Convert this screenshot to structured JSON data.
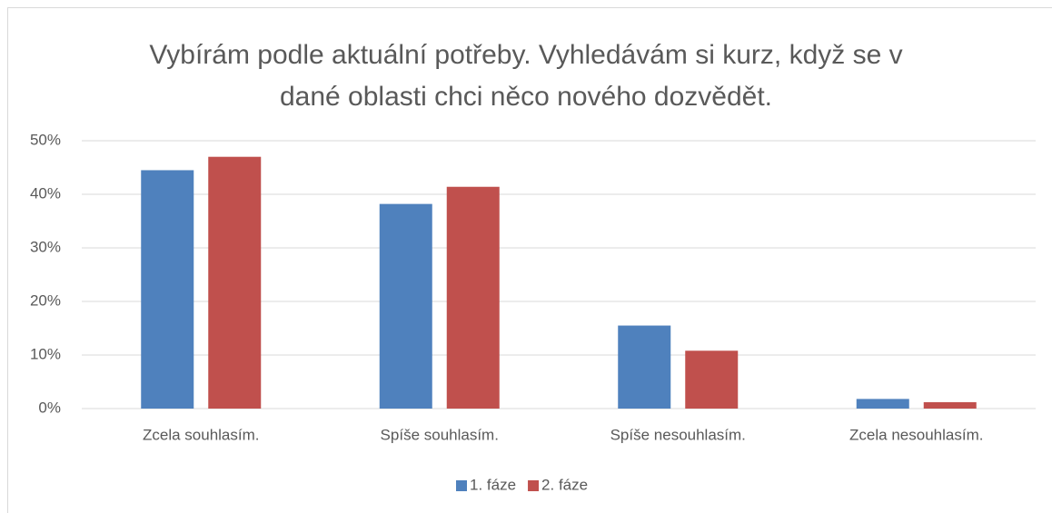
{
  "chart_data": {
    "type": "bar",
    "title": "Vybírám podle aktuální potřeby. Vyhledávám si kurz, když se v dané oblasti chci něco nového dozvědět.",
    "categories": [
      "Zcela souhlasím.",
      "Spíše souhlasím.",
      "Spíše nesouhlasím.",
      "Zcela nesouhlasím."
    ],
    "series": [
      {
        "name": "1. fáze",
        "color": "#4f81bd",
        "values": [
          44.5,
          38.2,
          15.5,
          1.8
        ]
      },
      {
        "name": "2. fáze",
        "color": "#c0504d",
        "values": [
          47,
          41.4,
          10.8,
          1.2
        ]
      }
    ],
    "ylim": [
      0,
      50
    ],
    "yticks": [
      {
        "value": 0,
        "label": "0%"
      },
      {
        "value": 10,
        "label": "10%"
      },
      {
        "value": 20,
        "label": "20%"
      },
      {
        "value": 30,
        "label": "30%"
      },
      {
        "value": 40,
        "label": "40%"
      },
      {
        "value": 50,
        "label": "50%"
      }
    ],
    "grid": true,
    "legend": "bottom"
  }
}
